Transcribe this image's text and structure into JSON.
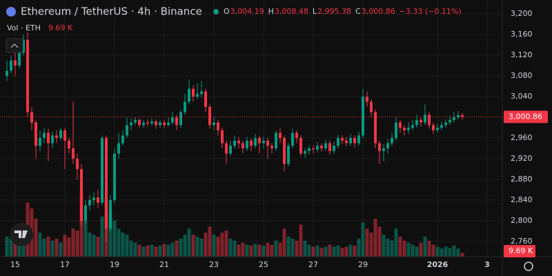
{
  "header": {
    "title": "Ethereum / TetherUS · 4h · Binance",
    "fields": [
      {
        "key": "O",
        "value": "3,004.19"
      },
      {
        "key": "H",
        "value": "3,008.48"
      },
      {
        "key": "L",
        "value": "2,995.38"
      },
      {
        "key": "C",
        "value": "3,000.86"
      }
    ],
    "change": "−3.33 (−0.11%)",
    "volume_title": "Vol · ETH",
    "volume_label": "9.69 K",
    "last_price_label": "3,000.86"
  },
  "chart_data": {
    "type": "candlestick",
    "up_color": "#089981",
    "down_color": "#f23645",
    "categories": [
      null,
      null,
      "15",
      null,
      null,
      null,
      null,
      null,
      null,
      null,
      null,
      null,
      null,
      null,
      "17",
      null,
      null,
      null,
      null,
      null,
      null,
      null,
      null,
      null,
      null,
      null,
      "19",
      null,
      null,
      null,
      null,
      null,
      null,
      null,
      null,
      null,
      null,
      null,
      "21",
      null,
      null,
      null,
      null,
      null,
      null,
      null,
      null,
      null,
      null,
      null,
      "23",
      null,
      null,
      null,
      null,
      null,
      null,
      null,
      null,
      null,
      null,
      null,
      "25",
      null,
      null,
      null,
      null,
      null,
      null,
      null,
      null,
      null,
      null,
      null,
      "27",
      null,
      null,
      null,
      null,
      null,
      null,
      null,
      null,
      null,
      null,
      null,
      "29",
      null,
      null,
      null,
      null,
      null,
      null,
      null,
      null,
      null,
      null,
      null,
      null,
      null,
      null,
      null,
      null,
      null,
      "2026",
      null,
      null,
      null,
      null,
      null,
      null,
      null,
      null,
      null,
      null,
      null,
      "3"
    ],
    "open": [
      3080,
      3090,
      3110,
      3100,
      3125,
      3150,
      3010,
      2990,
      2945,
      2960,
      2970,
      2950,
      2965,
      2960,
      2975,
      2955,
      2940,
      2920,
      2900,
      2800,
      2830,
      2840,
      2845,
      2835,
      2960,
      2785,
      2840,
      2930,
      2950,
      2965,
      2985,
      2990,
      2995,
      2985,
      2990,
      2988,
      2992,
      2985,
      2990,
      2985,
      2990,
      3000,
      2985,
      3010,
      3030,
      3055,
      3040,
      3045,
      3050,
      3020,
      2985,
      2990,
      2975,
      2950,
      2930,
      2945,
      2955,
      2950,
      2940,
      2955,
      2945,
      2960,
      2950,
      2955,
      2945,
      2940,
      2970,
      2960,
      2910,
      2945,
      2970,
      2960,
      2930,
      2935,
      2940,
      2938,
      2945,
      2940,
      2950,
      2935,
      2945,
      2960,
      2955,
      2950,
      2960,
      2950,
      2965,
      3040,
      3030,
      3010,
      2950,
      2935,
      2940,
      2950,
      2960,
      2990,
      2980,
      2975,
      2980,
      2985,
      2995,
      2990,
      3005,
      2985,
      2975,
      2980,
      2985,
      2990,
      2995,
      3000,
      3004.19,
      null,
      null,
      null,
      null,
      null,
      null
    ],
    "high": [
      3110,
      3118,
      3125,
      3135,
      3160,
      3165,
      3020,
      2995,
      2975,
      2980,
      2978,
      2972,
      2975,
      2980,
      2980,
      2960,
      3030,
      2930,
      2910,
      2840,
      2850,
      2855,
      2860,
      2965,
      2965,
      2850,
      2940,
      2970,
      2975,
      3000,
      2998,
      3000,
      2998,
      2995,
      2996,
      2998,
      2996,
      2995,
      2995,
      3000,
      3010,
      3005,
      3015,
      3045,
      3073,
      3062,
      3065,
      3070,
      3055,
      3025,
      3000,
      2995,
      2980,
      2955,
      2955,
      2965,
      2962,
      2955,
      2962,
      2960,
      2968,
      2965,
      2962,
      2960,
      2950,
      2975,
      2980,
      2965,
      2950,
      2978,
      2975,
      2965,
      2940,
      2945,
      2946,
      2952,
      2950,
      2956,
      2955,
      2952,
      2966,
      2965,
      2962,
      2968,
      2965,
      2972,
      3056,
      3050,
      3035,
      3015,
      2955,
      2948,
      2958,
      2970,
      3000,
      2995,
      2985,
      2990,
      2995,
      3005,
      3000,
      3025,
      3010,
      2990,
      2988,
      2992,
      2996,
      3002,
      3010,
      3012,
      3008.48,
      null,
      null,
      null,
      null,
      null,
      null
    ],
    "low": [
      3070,
      3085,
      3080,
      3095,
      3120,
      3000,
      2975,
      2920,
      2935,
      2950,
      2915,
      2940,
      2950,
      2955,
      2900,
      2930,
      2910,
      2880,
      2790,
      2795,
      2820,
      2830,
      2825,
      2830,
      2760,
      2780,
      2835,
      2920,
      2945,
      2960,
      2975,
      2985,
      2980,
      2980,
      2982,
      2984,
      2978,
      2980,
      2978,
      2982,
      2985,
      2975,
      2980,
      3005,
      3025,
      3030,
      3035,
      3038,
      3010,
      2978,
      2975,
      2965,
      2940,
      2910,
      2925,
      2940,
      2940,
      2930,
      2935,
      2935,
      2940,
      2930,
      2940,
      2920,
      2930,
      2935,
      2950,
      2895,
      2905,
      2940,
      2950,
      2925,
      2922,
      2928,
      2930,
      2932,
      2934,
      2936,
      2928,
      2930,
      2940,
      2948,
      2944,
      2945,
      2942,
      2945,
      2960,
      3020,
      3000,
      2940,
      2910,
      2915,
      2930,
      2945,
      2955,
      2970,
      2965,
      2968,
      2975,
      2980,
      2982,
      2985,
      2978,
      2968,
      2970,
      2975,
      2980,
      2985,
      2990,
      2996,
      2995.38,
      null,
      null,
      null,
      null,
      null,
      null
    ],
    "close": [
      3090,
      3110,
      3100,
      3125,
      3150,
      3010,
      2990,
      2945,
      2960,
      2970,
      2950,
      2965,
      2960,
      2975,
      2955,
      2940,
      2920,
      2900,
      2800,
      2830,
      2840,
      2845,
      2835,
      2960,
      2785,
      2840,
      2930,
      2950,
      2965,
      2985,
      2990,
      2995,
      2985,
      2990,
      2988,
      2992,
      2985,
      2990,
      2985,
      2990,
      3000,
      2985,
      3010,
      3030,
      3055,
      3040,
      3045,
      3050,
      3020,
      2985,
      2990,
      2975,
      2950,
      2930,
      2945,
      2955,
      2950,
      2940,
      2955,
      2945,
      2960,
      2950,
      2955,
      2945,
      2940,
      2970,
      2960,
      2910,
      2945,
      2970,
      2960,
      2930,
      2935,
      2940,
      2938,
      2945,
      2940,
      2950,
      2935,
      2945,
      2960,
      2955,
      2950,
      2960,
      2950,
      2965,
      3040,
      3030,
      3010,
      2950,
      2935,
      2940,
      2950,
      2960,
      2990,
      2980,
      2975,
      2980,
      2985,
      2995,
      2990,
      3005,
      2985,
      2975,
      2980,
      2985,
      2990,
      2995,
      3000,
      3004.19,
      3000.86,
      null,
      null,
      null,
      null,
      null,
      null
    ],
    "volume": [
      50,
      45,
      40,
      55,
      60,
      135,
      120,
      95,
      60,
      45,
      50,
      40,
      45,
      35,
      55,
      48,
      70,
      65,
      158,
      90,
      60,
      55,
      50,
      100,
      145,
      110,
      90,
      70,
      60,
      55,
      40,
      35,
      30,
      25,
      28,
      30,
      25,
      28,
      32,
      30,
      35,
      40,
      45,
      55,
      70,
      55,
      50,
      45,
      60,
      75,
      55,
      50,
      60,
      65,
      45,
      40,
      30,
      35,
      30,
      28,
      32,
      30,
      28,
      35,
      30,
      40,
      35,
      70,
      50,
      45,
      40,
      80,
      40,
      30,
      25,
      28,
      22,
      25,
      30,
      25,
      28,
      22,
      25,
      30,
      28,
      45,
      85,
      70,
      60,
      95,
      75,
      55,
      45,
      40,
      70,
      50,
      40,
      35,
      30,
      25,
      35,
      50,
      40,
      30,
      25,
      20,
      25,
      22,
      28,
      20,
      9.69,
      null,
      null,
      null,
      null,
      null,
      null
    ],
    "ylim": [
      2730.7,
      3226.7
    ],
    "vlim": [
      0,
      640
    ],
    "yticks": [
      {
        "value": 2760,
        "label": "2,760"
      },
      {
        "value": 2800,
        "label": "2,800"
      },
      {
        "value": 2840,
        "label": "2,840"
      },
      {
        "value": 2880,
        "label": "2,880"
      },
      {
        "value": 2920,
        "label": "2,920"
      },
      {
        "value": 2960,
        "label": "2,960"
      },
      {
        "value": 3040,
        "label": "3,040"
      },
      {
        "value": 3080,
        "label": "3,080"
      },
      {
        "value": 3120,
        "label": "3,120"
      },
      {
        "value": 3160,
        "label": "3,160"
      },
      {
        "value": 3200,
        "label": "3,200"
      }
    ],
    "grid": true
  }
}
